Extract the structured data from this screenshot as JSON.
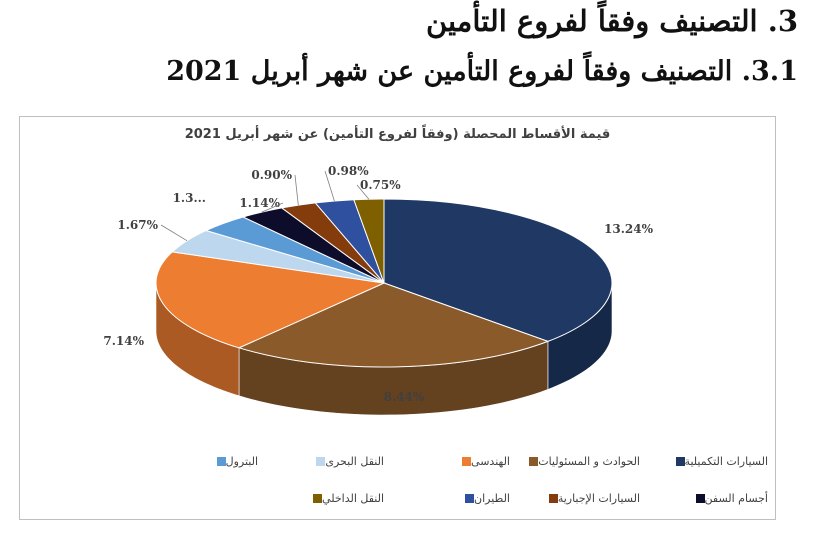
{
  "slide": {
    "heading1": "3.  التصنيف وفقاً لفروع التأمين",
    "heading2": "3.1. التصنيف وفقاً لفروع التأمين عن شهر أبريل 2021"
  },
  "chart_data": {
    "type": "pie",
    "style": "3d",
    "title": "قيمة الأقساط المحصلة (وفقاً لفروع التأمين) عن شهر أبريل 2021",
    "legend_position": "bottom",
    "slices": [
      {
        "name": "السيارات التكميلية",
        "value": 13.24,
        "label": "13.24%",
        "color": "#1f3864"
      },
      {
        "name": "الحوادث و المسئوليات",
        "value": 8.44,
        "label": "8.44%",
        "color": "#8b5a2b"
      },
      {
        "name": "الهندسى",
        "value": 7.14,
        "label": "7.14%",
        "color": "#ed7d31"
      },
      {
        "name": "النقل البحرى",
        "value": 1.67,
        "label": "1.67%",
        "color": "#bdd7ee"
      },
      {
        "name": "البترول",
        "value": 1.3,
        "label": "1.3...",
        "color": "#5b9bd5"
      },
      {
        "name": "أجسام السفن",
        "value": 1.14,
        "label": "1.14%",
        "color": "#0d0d2b"
      },
      {
        "name": "السيارات الإجبارية",
        "value": 0.9,
        "label": "0.90%",
        "color": "#843c0c"
      },
      {
        "name": "الطيران",
        "value": 0.98,
        "label": "0.98%",
        "color": "#2f4f9f"
      },
      {
        "name": "النقل الداخلي",
        "value": 0.75,
        "label": "0.75%",
        "color": "#7f6000"
      }
    ]
  }
}
